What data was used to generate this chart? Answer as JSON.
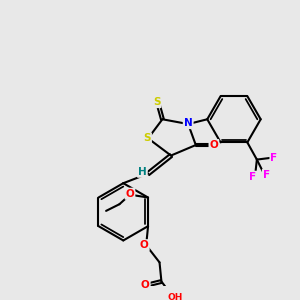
{
  "background_color": "#e8e8e8",
  "fig_size": [
    3.0,
    3.0
  ],
  "dpi": 100,
  "bond_color": "#000000",
  "bond_lw": 1.5,
  "atom_colors": {
    "S": "#cccc00",
    "N": "#0000ff",
    "O": "#ff0000",
    "F": "#ff00ff",
    "H": "#008080",
    "C": "#000000"
  },
  "font_size_atom": 7.5,
  "font_size_small": 6.5
}
